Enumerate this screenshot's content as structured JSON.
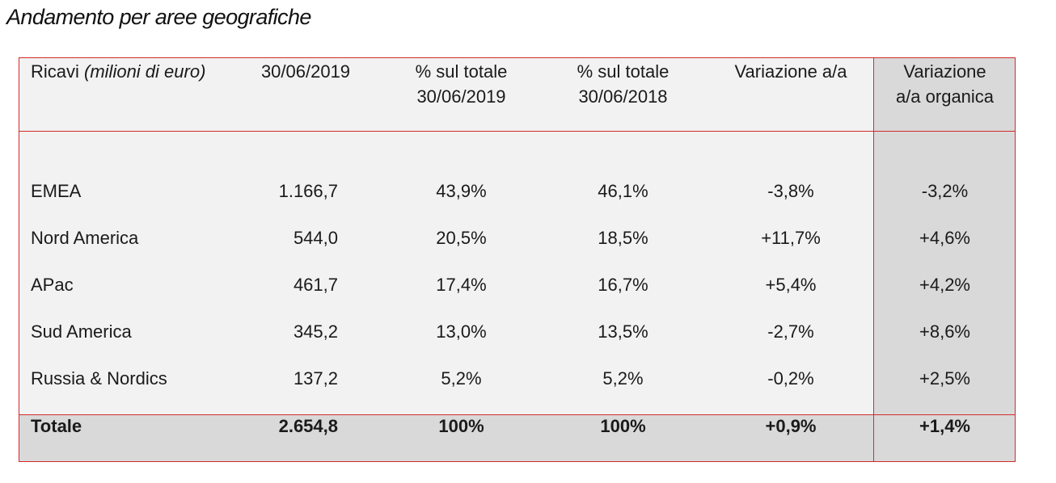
{
  "title": "Andamento per aree geografiche",
  "header": {
    "col0_prefix": "Ricavi ",
    "col0_italic": "(milioni di euro)",
    "col1": "30/06/2019",
    "col2_line1": "% sul totale",
    "col2_line2": "30/06/2019",
    "col3_line1": "% sul totale",
    "col3_line2": "30/06/2018",
    "col4": "Variazione a/a",
    "col5_line1": "Variazione",
    "col5_line2": "a/a organica"
  },
  "rows": [
    {
      "area": "EMEA",
      "ricavi": "1.166,7",
      "pct2019": "43,9%",
      "pct2018": "46,1%",
      "var": "-3,8%",
      "var_org": "-3,2%"
    },
    {
      "area": "Nord America",
      "ricavi": "544,0",
      "pct2019": "20,5%",
      "pct2018": "18,5%",
      "var": "+11,7%",
      "var_org": "+4,6%"
    },
    {
      "area": "APac",
      "ricavi": "461,7",
      "pct2019": "17,4%",
      "pct2018": "16,7%",
      "var": "+5,4%",
      "var_org": "+4,2%"
    },
    {
      "area": "Sud America",
      "ricavi": "345,2",
      "pct2019": "13,0%",
      "pct2018": "13,5%",
      "var": "-2,7%",
      "var_org": "+8,6%"
    },
    {
      "area": "Russia & Nordics",
      "ricavi": "137,2",
      "pct2019": "5,2%",
      "pct2018": "5,2%",
      "var": "-0,2%",
      "var_org": "+2,5%"
    }
  ],
  "total": {
    "label": "Totale",
    "ricavi": "2.654,8",
    "pct2019": "100%",
    "pct2018": "100%",
    "var": "+0,9%",
    "var_org": "+1,4%"
  },
  "colors": {
    "border": "#d42a2a",
    "bg_light": "#f2f2f2",
    "bg_dark": "#d9d9d9"
  }
}
